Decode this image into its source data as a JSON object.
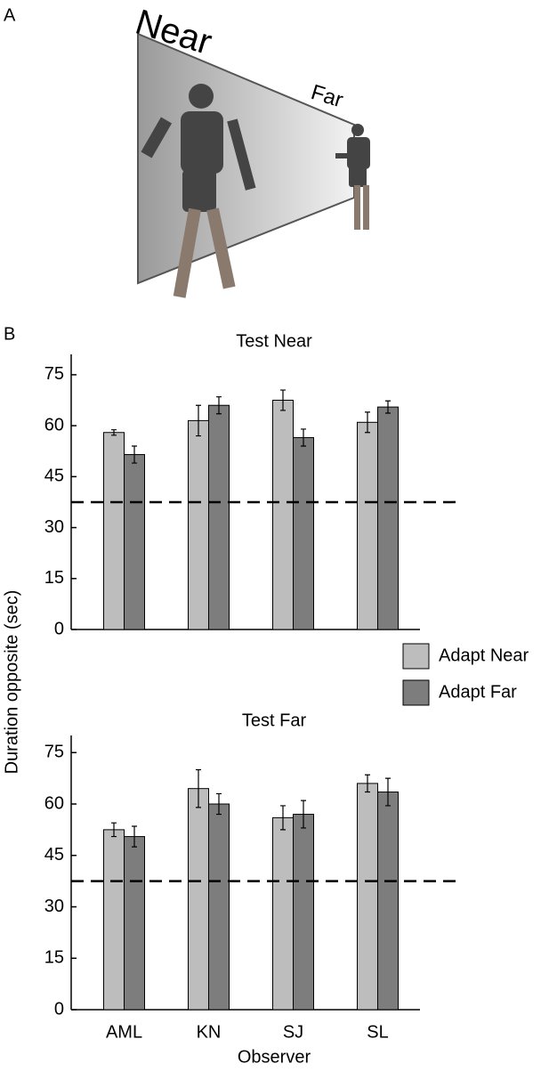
{
  "figure": {
    "panel_a": "A",
    "panel_b": "B",
    "near_label": "Near",
    "far_label": "Far"
  },
  "chart_data": [
    {
      "type": "bar",
      "title": "Test Near",
      "ylabel": "Duration opposite (sec)",
      "categories": [
        "AML",
        "KN",
        "SJ",
        "SL"
      ],
      "series": [
        {
          "name": "Adapt Near",
          "color": "#bdbdbd",
          "values": [
            58,
            61.5,
            67.5,
            61
          ],
          "errors": [
            0.8,
            4.5,
            3,
            3
          ]
        },
        {
          "name": "Adapt Far",
          "color": "#7d7d7d",
          "values": [
            51.5,
            66,
            56.5,
            65.5
          ],
          "errors": [
            2.5,
            2.5,
            2.5,
            1.8
          ]
        }
      ],
      "ylim": [
        0,
        81
      ],
      "yticks": [
        0,
        15,
        30,
        45,
        60,
        75
      ],
      "reference_line": 37.5
    },
    {
      "type": "bar",
      "title": "Test Far",
      "xlabel": "Observer",
      "categories": [
        "AML",
        "KN",
        "SJ",
        "SL"
      ],
      "series": [
        {
          "color": "#bdbdbd",
          "values": [
            52.5,
            64.5,
            56,
            66
          ],
          "errors": [
            2,
            5.5,
            3.5,
            2.5
          ]
        },
        {
          "color": "#7d7d7d",
          "values": [
            50.5,
            60,
            57,
            63.5
          ],
          "errors": [
            3,
            3,
            4,
            4
          ]
        }
      ],
      "ylim": [
        0,
        80
      ],
      "yticks": [
        0,
        15,
        30,
        45,
        60,
        75
      ],
      "reference_line": 37.5
    }
  ]
}
